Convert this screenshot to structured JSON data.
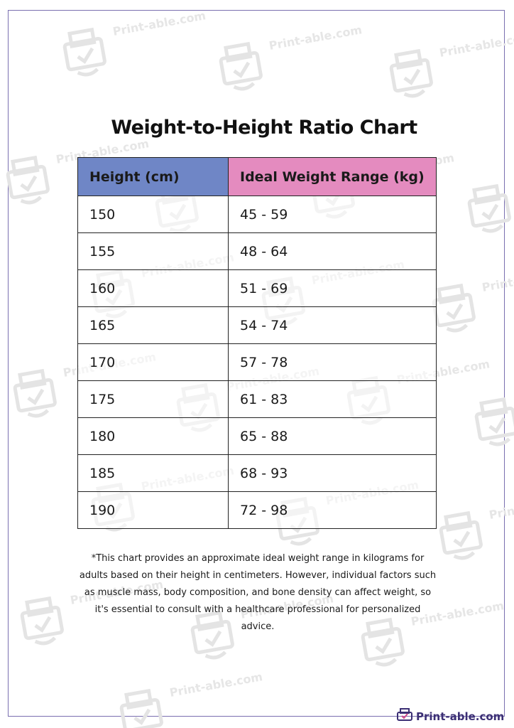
{
  "document": {
    "title": "Weight-to-Height Ratio Chart",
    "table": {
      "headers": [
        "Height (cm)",
        "Ideal Weight Range (kg)"
      ],
      "rows": [
        [
          "150",
          "45 - 59"
        ],
        [
          "155",
          "48 - 64"
        ],
        [
          "160",
          "51 - 69"
        ],
        [
          "165",
          "54 - 74"
        ],
        [
          "170",
          "57 - 78"
        ],
        [
          "175",
          "61 - 83"
        ],
        [
          "180",
          "65 - 88"
        ],
        [
          "185",
          "68 - 93"
        ],
        [
          "190",
          "72 - 98"
        ]
      ]
    },
    "note": "*This chart provides an approximate ideal weight range in kilograms for adults based on their height in centimeters. However, individual factors such as muscle mass, body composition, and bone density can affect weight, so it's essential to consult with a healthcare professional for personalized advice."
  },
  "watermark": {
    "text": "Print-able.com",
    "icon": "printer-check-icon"
  },
  "footer": {
    "brand": "Print-able.com",
    "icon": "printer-check-icon"
  },
  "colors": {
    "height_header": "#6f86c6",
    "weight_header": "#e48bbf",
    "frame": "#7a6fb0",
    "brand": "#3b2f74",
    "watermark": "#e6e6e6"
  }
}
